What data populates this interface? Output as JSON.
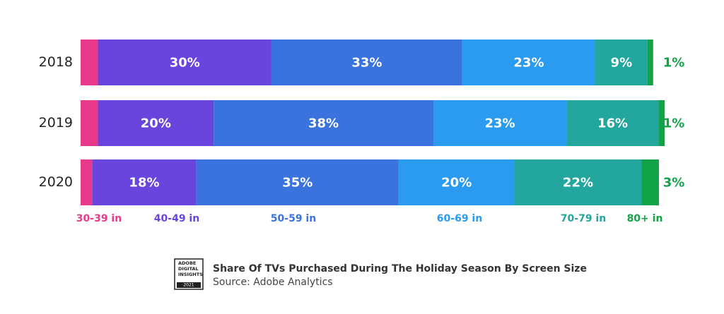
{
  "chart_data": {
    "type": "stacked-bar-horizontal",
    "categories": [
      "2018",
      "2019",
      "2020"
    ],
    "xlim": [
      0,
      100
    ],
    "series": [
      {
        "name": "30-39 in",
        "color": "#e8398a",
        "values": [
          3,
          3,
          2
        ]
      },
      {
        "name": "40-49 in",
        "color": "#6a45dd",
        "values": [
          30,
          20,
          18
        ],
        "value_labels": [
          "30%",
          "20%",
          "18%"
        ]
      },
      {
        "name": "50-59 in",
        "color": "#3a73dd",
        "values": [
          33,
          38,
          35
        ],
        "value_labels": [
          "33%",
          "38%",
          "35%"
        ]
      },
      {
        "name": "60-69 in",
        "color": "#2a9bf0",
        "values": [
          23,
          23,
          20
        ],
        "value_labels": [
          "23%",
          "23%",
          "20%"
        ]
      },
      {
        "name": "70-79 in",
        "color": "#23a69d",
        "values": [
          9,
          16,
          22
        ],
        "value_labels": [
          "9%",
          "16%",
          "22%"
        ]
      },
      {
        "name": "80+ in",
        "color": "#12a349",
        "values": [
          1,
          1,
          3
        ],
        "value_labels": [
          "1%",
          "1%",
          "3%"
        ]
      }
    ],
    "title": "Share Of TVs Purchased During The Holiday Season By Screen Size",
    "source": "Source: Adobe Analytics",
    "logo_text": [
      "ADOBE",
      "DIGITAL",
      "INSIGHTS",
      "2021"
    ]
  }
}
